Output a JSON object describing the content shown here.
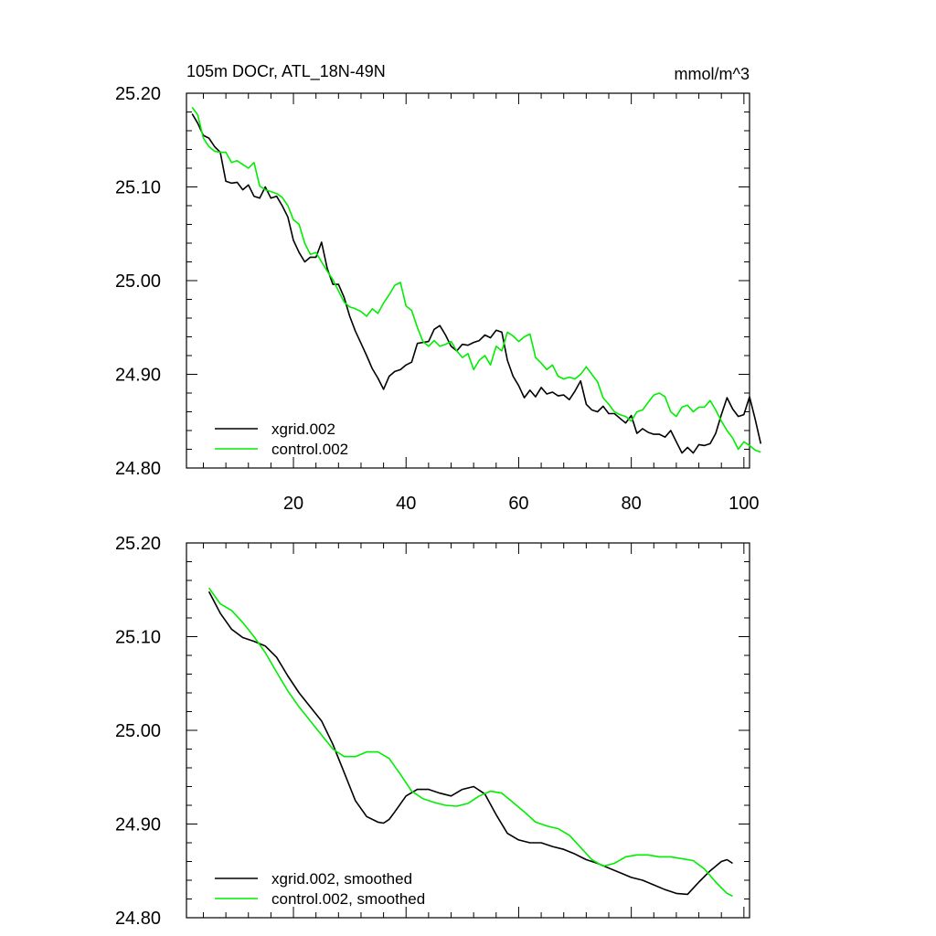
{
  "colors": {
    "xgrid": "#000000",
    "control": "#00ee00",
    "axis": "#000000",
    "background": "#ffffff"
  },
  "chart_data": [
    {
      "type": "line",
      "title": "105m DOCr, ATL_18N-49N",
      "units": "mmol/m^3",
      "xlabel": "",
      "ylabel": "",
      "xlim": [
        1,
        101
      ],
      "ylim": [
        24.8,
        25.2
      ],
      "x_ticks": [
        "20",
        "40",
        "60",
        "80",
        "100"
      ],
      "y_ticks": [
        "24.80",
        "24.90",
        "25.00",
        "25.10",
        "25.20"
      ],
      "legend": "bottom-left",
      "series": [
        {
          "name": "xgrid.002",
          "color": "#000000",
          "x_start": 2,
          "values": [
            25.178,
            25.168,
            25.155,
            25.152,
            25.143,
            25.137,
            25.106,
            25.104,
            25.105,
            25.097,
            25.102,
            25.09,
            25.088,
            25.1,
            25.088,
            25.09,
            25.08,
            25.068,
            25.043,
            25.03,
            25.02,
            25.025,
            25.025,
            25.041,
            25.013,
            24.996,
            24.996,
            24.982,
            24.962,
            24.946,
            24.933,
            24.92,
            24.906,
            24.896,
            24.884,
            24.898,
            24.903,
            24.905,
            24.91,
            24.913,
            24.933,
            24.934,
            24.935,
            24.948,
            24.952,
            24.942,
            24.93,
            24.925,
            24.932,
            24.931,
            24.934,
            24.936,
            24.942,
            24.939,
            24.947,
            24.945,
            24.915,
            24.898,
            24.888,
            24.875,
            24.883,
            24.876,
            24.886,
            24.879,
            24.881,
            24.877,
            24.878,
            24.873,
            24.882,
            24.893,
            24.868,
            24.862,
            24.86,
            24.866,
            24.858,
            24.858,
            24.853,
            24.848,
            24.856,
            24.837,
            24.842,
            24.838,
            24.836,
            24.836,
            24.833,
            24.84,
            24.828,
            24.816,
            24.822,
            24.816,
            24.825,
            24.824,
            24.826,
            24.837,
            24.857,
            24.875,
            24.863,
            24.855,
            24.857,
            24.876,
            24.852,
            24.826
          ]
        },
        {
          "name": "control.002",
          "color": "#00ee00",
          "x_start": 2,
          "values": [
            25.185,
            25.177,
            25.152,
            25.143,
            25.138,
            25.137,
            25.137,
            25.126,
            25.128,
            25.124,
            25.12,
            25.126,
            25.101,
            25.097,
            25.095,
            25.093,
            25.089,
            25.08,
            25.065,
            25.06,
            25.04,
            25.028,
            25.03,
            25.02,
            25.01,
            25.001,
            24.989,
            24.977,
            24.972,
            24.97,
            24.967,
            24.962,
            24.97,
            24.965,
            24.976,
            24.985,
            24.995,
            24.998,
            24.973,
            24.968,
            24.95,
            24.935,
            24.93,
            24.936,
            24.93,
            24.932,
            24.935,
            24.925,
            24.918,
            24.922,
            24.905,
            24.915,
            24.92,
            24.91,
            24.93,
            24.925,
            24.945,
            24.941,
            24.935,
            24.94,
            24.943,
            24.918,
            24.912,
            24.905,
            24.91,
            24.898,
            24.895,
            24.897,
            24.895,
            24.9,
            24.908,
            24.9,
            24.892,
            24.875,
            24.868,
            24.86,
            24.857,
            24.855,
            24.85,
            24.86,
            24.862,
            24.87,
            24.878,
            24.88,
            24.876,
            24.86,
            24.855,
            24.865,
            24.867,
            24.86,
            24.865,
            24.865,
            24.872,
            24.862,
            24.85,
            24.84,
            24.832,
            24.82,
            24.828,
            24.824,
            24.819,
            24.817
          ]
        }
      ]
    },
    {
      "type": "line",
      "title": "",
      "xlabel": "",
      "ylabel": "",
      "xlim": [
        1,
        101
      ],
      "ylim": [
        24.8,
        25.2
      ],
      "x_ticks": [],
      "y_ticks": [
        "24.80",
        "24.90",
        "25.00",
        "25.10",
        "25.20"
      ],
      "legend": "bottom-left",
      "series": [
        {
          "name": "xgrid.002, smoothed",
          "color": "#000000",
          "x": [
            5,
            7,
            9,
            11,
            13,
            15,
            17,
            19,
            21,
            23,
            25,
            27,
            29,
            31,
            33,
            35,
            36,
            37,
            38,
            40,
            42,
            44,
            46,
            48,
            50,
            52,
            54,
            56,
            58,
            60,
            62,
            64,
            66,
            68,
            70,
            72,
            74,
            76,
            78,
            80,
            82,
            84,
            86,
            88,
            90,
            92,
            94,
            96,
            97,
            98
          ],
          "values": [
            25.148,
            25.125,
            25.108,
            25.099,
            25.095,
            25.09,
            25.078,
            25.058,
            25.04,
            25.025,
            25.01,
            24.985,
            24.955,
            24.925,
            24.908,
            24.902,
            24.901,
            24.905,
            24.913,
            24.93,
            24.937,
            24.937,
            24.933,
            24.93,
            24.937,
            24.94,
            24.932,
            24.91,
            24.89,
            24.883,
            24.88,
            24.88,
            24.876,
            24.873,
            24.868,
            24.862,
            24.858,
            24.853,
            24.848,
            24.843,
            24.84,
            24.835,
            24.83,
            24.826,
            24.825,
            24.838,
            24.85,
            24.86,
            24.862,
            24.858
          ]
        },
        {
          "name": "control.002, smoothed",
          "color": "#00ee00",
          "x": [
            5,
            7,
            9,
            11,
            13,
            15,
            17,
            19,
            21,
            23,
            25,
            27,
            29,
            31,
            33,
            35,
            37,
            39,
            41,
            43,
            45,
            47,
            49,
            51,
            53,
            55,
            57,
            59,
            61,
            63,
            65,
            67,
            69,
            71,
            73,
            75,
            77,
            79,
            81,
            83,
            85,
            87,
            89,
            91,
            93,
            95,
            97,
            98
          ],
          "values": [
            25.152,
            25.135,
            25.128,
            25.115,
            25.1,
            25.083,
            25.062,
            25.042,
            25.025,
            25.01,
            24.995,
            24.98,
            24.972,
            24.972,
            24.977,
            24.977,
            24.97,
            24.953,
            24.935,
            24.927,
            24.923,
            24.92,
            24.919,
            24.922,
            24.93,
            24.935,
            24.933,
            24.923,
            24.913,
            24.902,
            24.898,
            24.895,
            24.888,
            24.875,
            24.862,
            24.855,
            24.858,
            24.865,
            24.867,
            24.867,
            24.865,
            24.865,
            24.863,
            24.861,
            24.852,
            24.838,
            24.826,
            24.823
          ]
        }
      ]
    }
  ]
}
